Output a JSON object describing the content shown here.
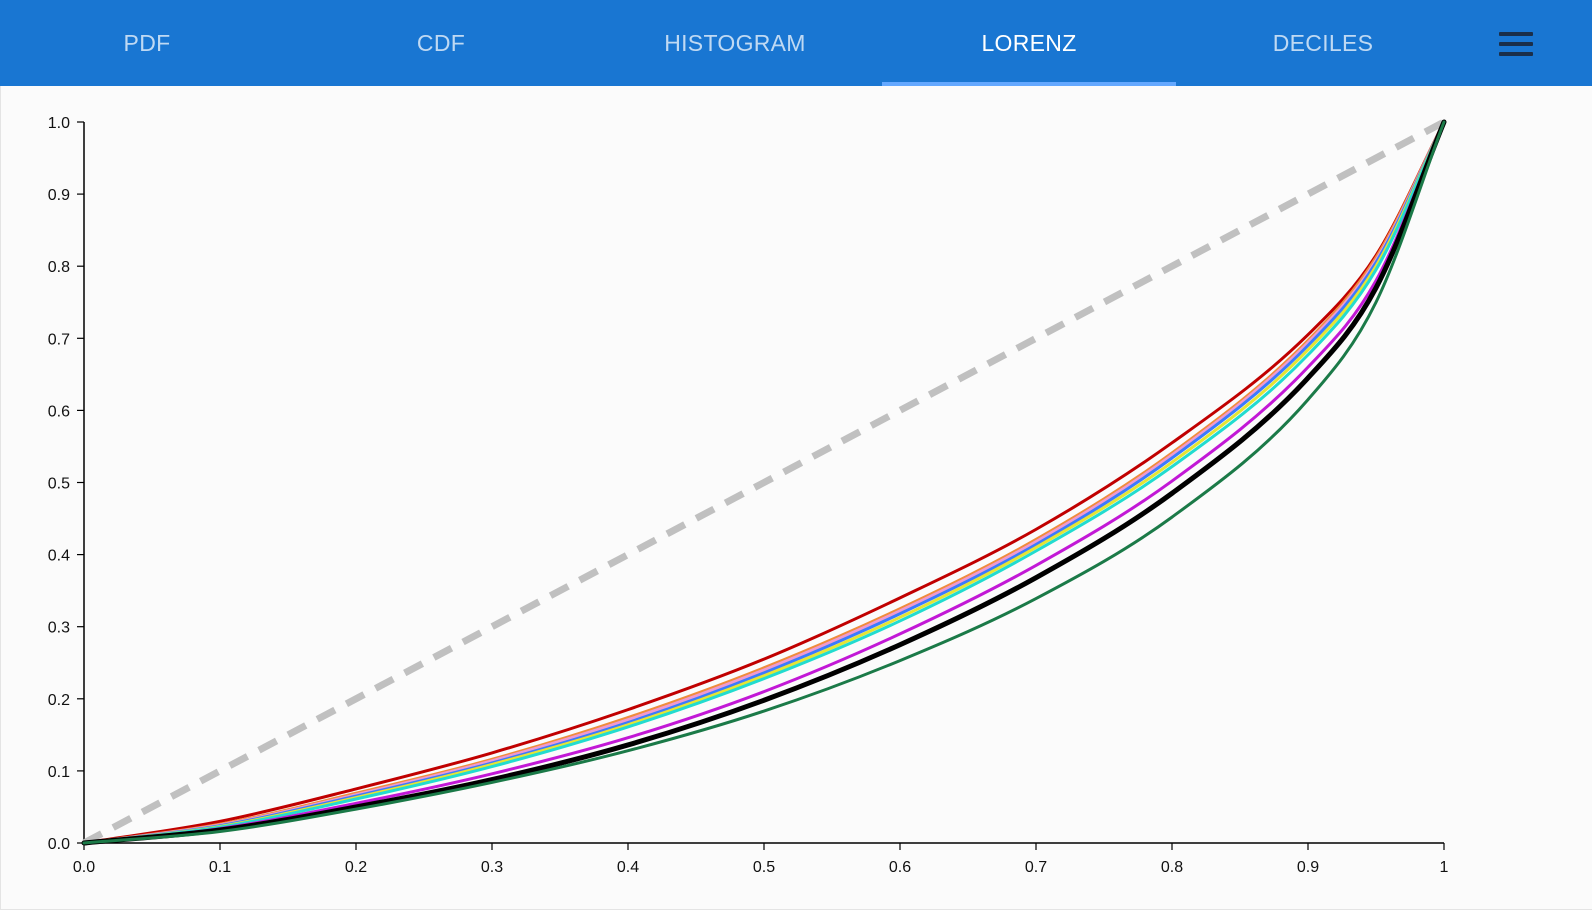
{
  "tabs": [
    {
      "label": "PDF",
      "active": false
    },
    {
      "label": "CDF",
      "active": false
    },
    {
      "label": "HISTOGRAM",
      "active": false
    },
    {
      "label": "LORENZ",
      "active": true
    },
    {
      "label": "DECILES",
      "active": false
    }
  ],
  "menu_icon": "hamburger-menu-icon",
  "colors": {
    "appbar": "#1976d2",
    "active_indicator": "#64a8ff",
    "equality_line": "#c0c0c0"
  },
  "chart_data": {
    "type": "line",
    "title": "",
    "xlabel": "",
    "ylabel": "",
    "xlim": [
      0,
      1
    ],
    "ylim": [
      0,
      1
    ],
    "x_ticks": [
      "0.0",
      "0.1",
      "0.2",
      "0.3",
      "0.4",
      "0.5",
      "0.6",
      "0.7",
      "0.8",
      "0.9",
      "1"
    ],
    "y_ticks": [
      "0.0",
      "0.1",
      "0.2",
      "0.3",
      "0.4",
      "0.5",
      "0.6",
      "0.7",
      "0.8",
      "0.9",
      "1.0"
    ],
    "grid": false,
    "equality_line": {
      "x": [
        0,
        1
      ],
      "y": [
        0,
        1
      ],
      "color": "#c0c0c0",
      "style": "dashed"
    },
    "x": [
      0,
      0.1,
      0.2,
      0.3,
      0.4,
      0.5,
      0.6,
      0.7,
      0.8,
      0.9,
      0.95,
      1
    ],
    "series": [
      {
        "color": "#c00000",
        "values": [
          0,
          0.03,
          0.075,
          0.125,
          0.185,
          0.255,
          0.34,
          0.435,
          0.555,
          0.705,
          0.815,
          1
        ]
      },
      {
        "color": "#f08c3c",
        "values": [
          0,
          0.026,
          0.069,
          0.116,
          0.174,
          0.243,
          0.325,
          0.421,
          0.541,
          0.697,
          0.812,
          1
        ]
      },
      {
        "color": "#ee9ad0",
        "values": [
          0,
          0.025,
          0.067,
          0.114,
          0.171,
          0.24,
          0.322,
          0.418,
          0.538,
          0.694,
          0.808,
          1
        ]
      },
      {
        "color": "#3a7bff",
        "values": [
          0,
          0.024,
          0.065,
          0.111,
          0.167,
          0.236,
          0.318,
          0.414,
          0.534,
          0.69,
          0.805,
          1
        ]
      },
      {
        "color": "#e5e533",
        "values": [
          0,
          0.023,
          0.063,
          0.109,
          0.164,
          0.232,
          0.313,
          0.41,
          0.528,
          0.684,
          0.8,
          1
        ]
      },
      {
        "color": "#22dccf",
        "values": [
          0,
          0.022,
          0.061,
          0.106,
          0.161,
          0.228,
          0.308,
          0.405,
          0.522,
          0.677,
          0.795,
          1
        ]
      },
      {
        "color": "#c218d6",
        "values": [
          0,
          0.02,
          0.055,
          0.096,
          0.146,
          0.21,
          0.29,
          0.385,
          0.502,
          0.66,
          0.78,
          1
        ]
      },
      {
        "color": "#000000",
        "values": [
          0,
          0.018,
          0.05,
          0.088,
          0.136,
          0.198,
          0.275,
          0.368,
          0.485,
          0.645,
          0.77,
          1
        ]
      },
      {
        "color": "#1b7a48",
        "values": [
          0,
          0.016,
          0.047,
          0.084,
          0.128,
          0.183,
          0.253,
          0.339,
          0.452,
          0.615,
          0.75,
          1
        ]
      }
    ]
  }
}
